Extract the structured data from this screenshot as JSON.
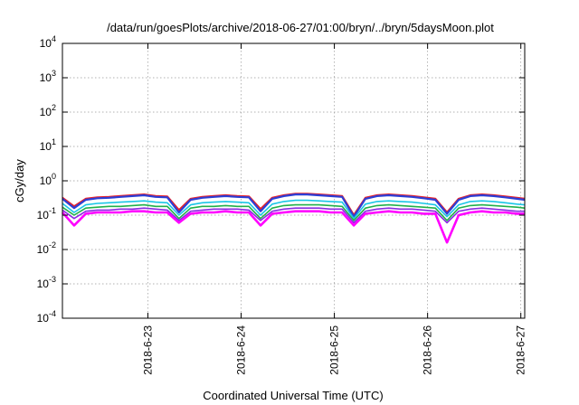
{
  "chart_data": {
    "type": "line",
    "title": "/data/run/goesPlots/archive/2018-06-27/01:00/bryn/../bryn/5daysMoon.plot",
    "xlabel": "Coordinated Universal Time (UTC)",
    "ylabel": "cGy/day",
    "yscale": "log",
    "ylim": [
      0.0001,
      10000
    ],
    "xlim": [
      "2018-06-22 02:00",
      "2018-06-27 01:00"
    ],
    "grid": true,
    "legend": "none",
    "y_ticks": [
      {
        "value": 0.0001,
        "base": "10",
        "exp": "-4"
      },
      {
        "value": 0.001,
        "base": "10",
        "exp": "-3"
      },
      {
        "value": 0.01,
        "base": "10",
        "exp": "-2"
      },
      {
        "value": 0.1,
        "base": "10",
        "exp": "-1"
      },
      {
        "value": 1,
        "base": "10",
        "exp": "0"
      },
      {
        "value": 10,
        "base": "10",
        "exp": "1"
      },
      {
        "value": 100,
        "base": "10",
        "exp": "2"
      },
      {
        "value": 1000,
        "base": "10",
        "exp": "3"
      },
      {
        "value": 10000,
        "base": "10",
        "exp": "4"
      }
    ],
    "x_ticks": [
      {
        "date": "2018-06-23 00:00",
        "label": "2018-6-23"
      },
      {
        "date": "2018-06-24 00:00",
        "label": "2018-6-24"
      },
      {
        "date": "2018-06-25 00:00",
        "label": "2018-6-25"
      },
      {
        "date": "2018-06-26 00:00",
        "label": "2018-6-26"
      },
      {
        "date": "2018-06-27 00:00",
        "label": "2018-6-27"
      }
    ],
    "x": [
      "2018-06-22 02:00",
      "2018-06-22 05:00",
      "2018-06-22 08:00",
      "2018-06-22 11:00",
      "2018-06-22 14:00",
      "2018-06-22 17:00",
      "2018-06-22 20:00",
      "2018-06-22 23:00",
      "2018-06-23 02:00",
      "2018-06-23 05:00",
      "2018-06-23 08:00",
      "2018-06-23 11:00",
      "2018-06-23 14:00",
      "2018-06-23 17:00",
      "2018-06-23 20:00",
      "2018-06-23 23:00",
      "2018-06-24 02:00",
      "2018-06-24 05:00",
      "2018-06-24 08:00",
      "2018-06-24 11:00",
      "2018-06-24 14:00",
      "2018-06-24 17:00",
      "2018-06-24 20:00",
      "2018-06-24 23:00",
      "2018-06-25 02:00",
      "2018-06-25 05:00",
      "2018-06-25 08:00",
      "2018-06-25 11:00",
      "2018-06-25 14:00",
      "2018-06-25 17:00",
      "2018-06-25 20:00",
      "2018-06-25 23:00",
      "2018-06-26 02:00",
      "2018-06-26 05:00",
      "2018-06-26 08:00",
      "2018-06-26 11:00",
      "2018-06-26 14:00",
      "2018-06-26 17:00",
      "2018-06-26 20:00",
      "2018-06-26 23:00",
      "2018-06-27 01:00"
    ],
    "series": [
      {
        "color": "#e8202a",
        "width": 2.2,
        "values": [
          0.32,
          0.18,
          0.3,
          0.33,
          0.34,
          0.36,
          0.38,
          0.4,
          0.36,
          0.35,
          0.14,
          0.3,
          0.34,
          0.36,
          0.38,
          0.36,
          0.35,
          0.15,
          0.32,
          0.38,
          0.42,
          0.42,
          0.4,
          0.38,
          0.36,
          0.1,
          0.32,
          0.38,
          0.4,
          0.38,
          0.36,
          0.33,
          0.3,
          0.12,
          0.3,
          0.38,
          0.4,
          0.38,
          0.35,
          0.32,
          0.3
        ]
      },
      {
        "color": "#2c3fd6",
        "width": 2.2,
        "values": [
          0.3,
          0.16,
          0.28,
          0.31,
          0.32,
          0.34,
          0.36,
          0.38,
          0.34,
          0.33,
          0.12,
          0.28,
          0.32,
          0.34,
          0.36,
          0.34,
          0.33,
          0.13,
          0.3,
          0.36,
          0.4,
          0.4,
          0.38,
          0.36,
          0.34,
          0.09,
          0.3,
          0.36,
          0.38,
          0.36,
          0.34,
          0.31,
          0.28,
          0.11,
          0.28,
          0.36,
          0.38,
          0.36,
          0.33,
          0.3,
          0.28
        ]
      },
      {
        "color": "#19c6e6",
        "width": 1.6,
        "values": [
          0.22,
          0.12,
          0.2,
          0.22,
          0.23,
          0.24,
          0.25,
          0.26,
          0.24,
          0.23,
          0.1,
          0.2,
          0.23,
          0.24,
          0.25,
          0.24,
          0.23,
          0.1,
          0.21,
          0.25,
          0.27,
          0.27,
          0.26,
          0.25,
          0.24,
          0.08,
          0.21,
          0.25,
          0.26,
          0.25,
          0.24,
          0.22,
          0.2,
          0.09,
          0.2,
          0.25,
          0.26,
          0.25,
          0.23,
          0.21,
          0.2
        ]
      },
      {
        "color": "#22b04a",
        "width": 1.6,
        "values": [
          0.17,
          0.1,
          0.16,
          0.17,
          0.18,
          0.18,
          0.19,
          0.2,
          0.18,
          0.18,
          0.08,
          0.16,
          0.18,
          0.18,
          0.19,
          0.18,
          0.18,
          0.08,
          0.16,
          0.19,
          0.2,
          0.2,
          0.2,
          0.19,
          0.18,
          0.07,
          0.16,
          0.19,
          0.2,
          0.19,
          0.18,
          0.17,
          0.16,
          0.07,
          0.16,
          0.19,
          0.2,
          0.19,
          0.18,
          0.17,
          0.16
        ]
      },
      {
        "color": "#8a2be2",
        "width": 1.6,
        "values": [
          0.14,
          0.08,
          0.13,
          0.14,
          0.14,
          0.15,
          0.15,
          0.16,
          0.15,
          0.14,
          0.07,
          0.13,
          0.14,
          0.15,
          0.15,
          0.15,
          0.14,
          0.07,
          0.13,
          0.15,
          0.16,
          0.16,
          0.16,
          0.15,
          0.15,
          0.06,
          0.13,
          0.15,
          0.16,
          0.15,
          0.15,
          0.14,
          0.13,
          0.06,
          0.13,
          0.15,
          0.16,
          0.15,
          0.14,
          0.13,
          0.13
        ]
      },
      {
        "color": "#ff00ff",
        "width": 2.6,
        "values": [
          0.12,
          0.05,
          0.11,
          0.12,
          0.12,
          0.12,
          0.13,
          0.13,
          0.12,
          0.12,
          0.06,
          0.11,
          0.12,
          0.12,
          0.13,
          0.12,
          0.12,
          0.05,
          0.11,
          0.12,
          0.13,
          0.13,
          0.13,
          0.12,
          0.12,
          0.05,
          0.11,
          0.12,
          0.13,
          0.12,
          0.12,
          0.11,
          0.11,
          0.016,
          0.1,
          0.12,
          0.13,
          0.12,
          0.12,
          0.11,
          0.11
        ]
      }
    ]
  }
}
